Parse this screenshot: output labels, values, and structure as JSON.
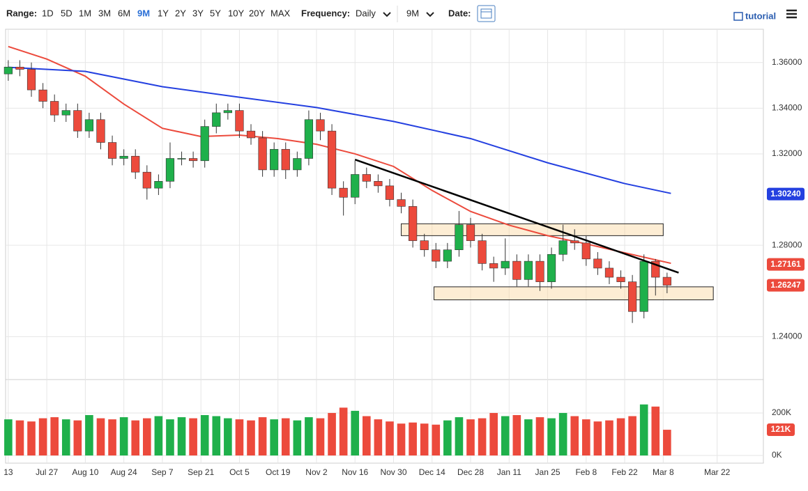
{
  "toolbar": {
    "range_label": "Range:",
    "ranges": [
      "1D",
      "5D",
      "1M",
      "3M",
      "6M",
      "9M",
      "1Y",
      "2Y",
      "3Y",
      "5Y",
      "10Y",
      "20Y",
      "MAX"
    ],
    "frequency_label": "Frequency:",
    "frequency": "Daily",
    "period": "9M",
    "date_label": "Date:",
    "tutorial": "tutorial"
  },
  "chart_data": {
    "type": "candlestick",
    "x": [
      0,
      3,
      6,
      9,
      12,
      15,
      18,
      21,
      24,
      27,
      30,
      33,
      36,
      39,
      42,
      45,
      48,
      51,
      54,
      57,
      60,
      63,
      66,
      69,
      72,
      75,
      78,
      81,
      84,
      87,
      90,
      93,
      96,
      99,
      102,
      105,
      108,
      111,
      114,
      117,
      120,
      123,
      126,
      129,
      132,
      135,
      138,
      141,
      144,
      147,
      150,
      153,
      156,
      159,
      162,
      165,
      168,
      171
    ],
    "open": [
      1.355,
      1.358,
      1.357,
      1.348,
      1.343,
      1.337,
      1.339,
      1.33,
      1.335,
      1.325,
      1.318,
      1.319,
      1.312,
      1.305,
      1.308,
      1.318,
      1.318,
      1.317,
      1.332,
      1.338,
      1.339,
      1.33,
      1.327,
      1.313,
      1.322,
      1.313,
      1.318,
      1.335,
      1.33,
      1.305,
      1.301,
      1.311,
      1.308,
      1.306,
      1.3,
      1.297,
      1.282,
      1.278,
      1.273,
      1.278,
      1.289,
      1.282,
      1.272,
      1.27,
      1.273,
      1.265,
      1.273,
      1.264,
      1.276,
      1.282,
      1.281,
      1.274,
      1.27,
      1.266,
      1.264,
      1.251,
      1.273,
      1.266
    ],
    "high": [
      1.361,
      1.361,
      1.36,
      1.351,
      1.346,
      1.342,
      1.342,
      1.338,
      1.338,
      1.328,
      1.322,
      1.322,
      1.315,
      1.311,
      1.325,
      1.321,
      1.321,
      1.335,
      1.342,
      1.342,
      1.342,
      1.333,
      1.33,
      1.325,
      1.325,
      1.321,
      1.339,
      1.338,
      1.333,
      1.308,
      1.317,
      1.314,
      1.311,
      1.309,
      1.303,
      1.3,
      1.285,
      1.281,
      1.281,
      1.295,
      1.292,
      1.285,
      1.275,
      1.283,
      1.276,
      1.276,
      1.276,
      1.279,
      1.289,
      1.287,
      1.284,
      1.277,
      1.273,
      1.269,
      1.267,
      1.276,
      1.274,
      1.268
    ],
    "low": [
      1.352,
      1.354,
      1.345,
      1.34,
      1.334,
      1.334,
      1.327,
      1.327,
      1.322,
      1.315,
      1.315,
      1.309,
      1.3,
      1.302,
      1.305,
      1.315,
      1.314,
      1.314,
      1.329,
      1.335,
      1.327,
      1.324,
      1.31,
      1.31,
      1.309,
      1.31,
      1.315,
      1.326,
      1.302,
      1.293,
      1.298,
      1.305,
      1.303,
      1.297,
      1.294,
      1.279,
      1.275,
      1.27,
      1.27,
      1.275,
      1.279,
      1.269,
      1.264,
      1.267,
      1.262,
      1.262,
      1.26,
      1.261,
      1.273,
      1.278,
      1.271,
      1.267,
      1.263,
      1.261,
      1.246,
      1.248,
      1.258,
      1.259
    ],
    "close": [
      1.358,
      1.357,
      1.348,
      1.343,
      1.337,
      1.339,
      1.33,
      1.335,
      1.325,
      1.318,
      1.319,
      1.312,
      1.305,
      1.308,
      1.318,
      1.318,
      1.317,
      1.332,
      1.338,
      1.339,
      1.33,
      1.327,
      1.313,
      1.322,
      1.313,
      1.318,
      1.335,
      1.33,
      1.305,
      1.301,
      1.311,
      1.308,
      1.306,
      1.3,
      1.297,
      1.282,
      1.278,
      1.273,
      1.278,
      1.289,
      1.282,
      1.272,
      1.27,
      1.273,
      1.265,
      1.273,
      1.264,
      1.276,
      1.282,
      1.281,
      1.274,
      1.27,
      1.266,
      1.264,
      1.251,
      1.273,
      1.266,
      1.2625
    ],
    "volume": [
      170,
      165,
      160,
      175,
      180,
      170,
      165,
      190,
      175,
      170,
      180,
      165,
      175,
      185,
      170,
      180,
      175,
      190,
      185,
      175,
      170,
      165,
      180,
      170,
      175,
      165,
      180,
      175,
      200,
      225,
      210,
      185,
      170,
      160,
      150,
      155,
      150,
      145,
      165,
      180,
      170,
      175,
      200,
      185,
      190,
      170,
      180,
      175,
      200,
      185,
      170,
      160,
      165,
      175,
      185,
      240,
      230,
      121
    ],
    "up_color": "#1fb04b",
    "down_color": "#ec4a3c",
    "lines": [
      {
        "color": "#ec4a3c",
        "x": [
          0,
          10,
          20,
          30,
          40,
          50,
          60,
          70,
          80,
          90,
          100,
          110,
          120,
          130,
          140,
          150,
          160,
          172
        ],
        "values": [
          1.367,
          1.3615,
          1.354,
          1.3418,
          1.3312,
          1.3276,
          1.3282,
          1.3267,
          1.3242,
          1.32,
          1.3145,
          1.304,
          1.2948,
          1.2888,
          1.2842,
          1.2806,
          1.2767,
          1.2721
        ]
      },
      {
        "color": "#2440e0",
        "x": [
          0,
          20,
          40,
          60,
          80,
          100,
          120,
          140,
          160,
          172
        ],
        "values": [
          1.3579,
          1.3561,
          1.3494,
          1.3448,
          1.3403,
          1.3342,
          1.3267,
          1.3161,
          1.307,
          1.3027
        ]
      }
    ],
    "trendline": {
      "x": [
        90,
        174
      ],
      "values": [
        1.3175,
        1.268
      ]
    },
    "zones": [
      {
        "x": [
          102,
          170
        ],
        "range": [
          1.2842,
          1.2894
        ]
      },
      {
        "x": [
          110.5,
          183
        ],
        "range": [
          1.2561,
          1.2618
        ]
      }
    ],
    "xlim": [
      -0.7,
      196
    ],
    "ylim": [
      1.22121,
      1.37455
    ],
    "vlim": [
      -36,
      357
    ],
    "xticks": [
      {
        "value": 0,
        "label": "13"
      },
      {
        "value": 10,
        "label": "Jul 27"
      },
      {
        "value": 20,
        "label": "Aug 10"
      },
      {
        "value": 30,
        "label": "Aug 24"
      },
      {
        "value": 40,
        "label": "Sep 7"
      },
      {
        "value": 50,
        "label": "Sep 21"
      },
      {
        "value": 60,
        "label": "Oct 5"
      },
      {
        "value": 70,
        "label": "Oct 19"
      },
      {
        "value": 80,
        "label": "Nov 2"
      },
      {
        "value": 90,
        "label": "Nov 16"
      },
      {
        "value": 100,
        "label": "Nov 30"
      },
      {
        "value": 110,
        "label": "Dec 14"
      },
      {
        "value": 120,
        "label": "Dec 28"
      },
      {
        "value": 130,
        "label": "Jan 11"
      },
      {
        "value": 140,
        "label": "Jan 25"
      },
      {
        "value": 150,
        "label": "Feb 8"
      },
      {
        "value": 160,
        "label": "Feb 22"
      },
      {
        "value": 170,
        "label": "Mar 8"
      },
      {
        "value": 184,
        "label": "Mar 22"
      }
    ],
    "yticks": [
      {
        "value": 1.36,
        "label": "1.36000"
      },
      {
        "value": 1.34,
        "label": "1.34000"
      },
      {
        "value": 1.32,
        "label": "1.32000"
      },
      {
        "value": 1.28,
        "label": "1.28000"
      },
      {
        "value": 1.24,
        "label": "1.24000"
      }
    ],
    "vticks": [
      {
        "value": 200,
        "label": "200K"
      },
      {
        "value": 0,
        "label": "0K"
      }
    ],
    "last_values": [
      {
        "value": 1.3024,
        "label": "1.30240",
        "color": "#2440e0"
      },
      {
        "value": 1.27161,
        "label": "1.27161",
        "color": "#ec4a3c"
      },
      {
        "value": 1.26247,
        "label": "1.26247",
        "color": "#ec4a3c"
      }
    ],
    "last_volume": {
      "value": 121,
      "label": "121K",
      "color": "#ec4a3c"
    },
    "grid": true
  }
}
